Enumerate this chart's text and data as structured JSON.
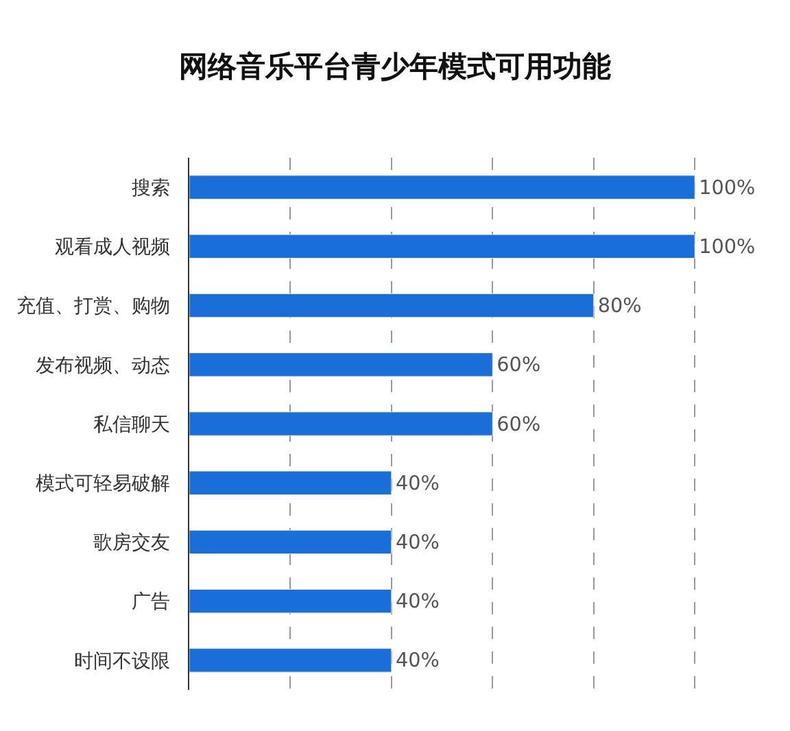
{
  "chart_data": {
    "type": "bar",
    "orientation": "horizontal",
    "title": "网络音乐平台青少年模式可用功能",
    "categories": [
      "搜索",
      "观看成人视频",
      "充值、打赏、购物",
      "发布视频、动态",
      "私信聊天",
      "模式可轻易破解",
      "歌房交友",
      "广告",
      "时间不设限"
    ],
    "values": [
      100,
      100,
      80,
      60,
      60,
      40,
      40,
      40,
      40
    ],
    "value_labels": [
      "100%",
      "100%",
      "80%",
      "60%",
      "60%",
      "40%",
      "40%",
      "40%",
      "40%"
    ],
    "color": "#1a6ed8",
    "grid": "x",
    "tick_labels": "y"
  }
}
